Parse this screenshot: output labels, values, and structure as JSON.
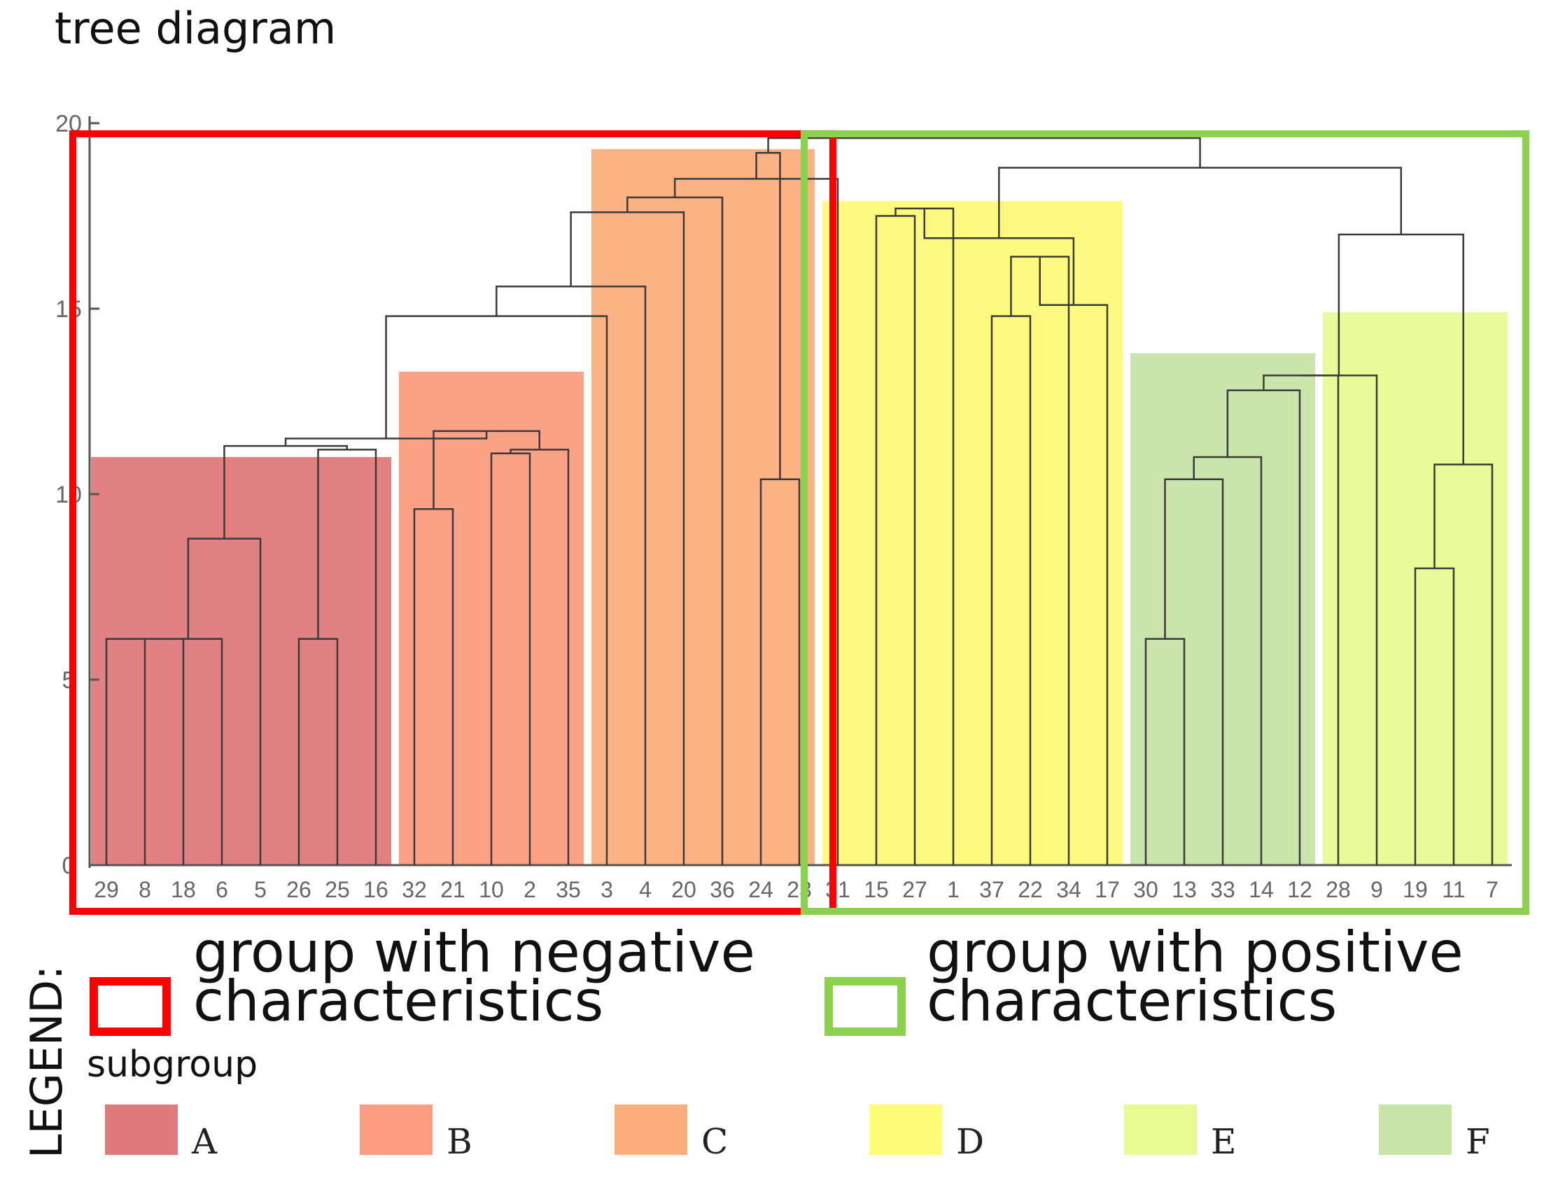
{
  "chart_data": {
    "type": "dendrogram",
    "title": "tree diagram",
    "ylim": [
      0,
      20
    ],
    "yticks": [
      0,
      5,
      10,
      15,
      20
    ],
    "leaves": [
      "29",
      "8",
      "18",
      "6",
      "5",
      "26",
      "25",
      "16",
      "32",
      "21",
      "10",
      "2",
      "35",
      "3",
      "4",
      "20",
      "36",
      "24",
      "23",
      "31",
      "15",
      "27",
      "1",
      "37",
      "22",
      "34",
      "17",
      "30",
      "13",
      "33",
      "14",
      "12",
      "28",
      "9",
      "19",
      "11",
      "7"
    ],
    "merges": [
      {
        "left": "L0",
        "right": "L1",
        "height": 6.1
      },
      {
        "left": "M0",
        "right": "L2",
        "height": 6.1
      },
      {
        "left": "M1",
        "right": "L3",
        "height": 6.1
      },
      {
        "left": "M2",
        "right": "L4",
        "height": 8.8
      },
      {
        "left": "L5",
        "right": "L6",
        "height": 6.1
      },
      {
        "left": "M4",
        "right": "L7",
        "height": 11.2
      },
      {
        "left": "M3",
        "right": "M5",
        "height": 11.3
      },
      {
        "left": "L8",
        "right": "L9",
        "height": 9.6
      },
      {
        "left": "L10",
        "right": "L11",
        "height": 11.1
      },
      {
        "left": "M8",
        "right": "L12",
        "height": 11.2
      },
      {
        "left": "M7",
        "right": "M9",
        "height": 11.7
      },
      {
        "left": "M6",
        "right": "M10",
        "height": 11.5
      },
      {
        "left": "M11",
        "right": "L13",
        "height": 14.8
      },
      {
        "left": "M12",
        "right": "L14",
        "height": 15.6
      },
      {
        "left": "M13",
        "right": "L15",
        "height": 17.6
      },
      {
        "left": "M14",
        "right": "L16",
        "height": 18.0
      },
      {
        "left": "L17",
        "right": "L18",
        "height": 10.4
      },
      {
        "left": "M15",
        "right": "L19",
        "height": 18.5
      },
      {
        "left": "L20",
        "right": "L21",
        "height": 17.5
      },
      {
        "left": "M17",
        "right": "M16",
        "height": 19.2
      },
      {
        "left": "M18",
        "right": "L22",
        "height": 17.7
      },
      {
        "left": "L23",
        "right": "L24",
        "height": 14.8
      },
      {
        "left": "M21",
        "right": "L25",
        "height": 16.4
      },
      {
        "left": "M22",
        "right": "L26",
        "height": 15.1
      },
      {
        "left": "M20",
        "right": "M23",
        "height": 16.9
      },
      {
        "left": "L27",
        "right": "L28",
        "height": 6.1
      },
      {
        "left": "M25",
        "right": "L29",
        "height": 10.4
      },
      {
        "left": "M26",
        "right": "L30",
        "height": 11.0
      },
      {
        "left": "M27",
        "right": "L31",
        "height": 12.8
      },
      {
        "left": "M28",
        "right": "L32",
        "height": 13.2
      },
      {
        "left": "M29",
        "right": "L33",
        "height": 13.2
      },
      {
        "left": "L34",
        "right": "L35",
        "height": 8.0
      },
      {
        "left": "M31",
        "right": "L36",
        "height": 10.8
      },
      {
        "left": "M30",
        "right": "M32",
        "height": 17.0
      },
      {
        "left": "M24",
        "right": "M33",
        "height": 18.8
      },
      {
        "left": "M19",
        "right": "M34",
        "height": 19.6
      }
    ],
    "subgroups": [
      {
        "name": "A",
        "from": "29",
        "to": "16",
        "top": 11.0,
        "color": "#e07a7c"
      },
      {
        "name": "B",
        "from": "32",
        "to": "35",
        "top": 13.3,
        "color": "#fc9c80"
      },
      {
        "name": "C",
        "from": "3",
        "to": "23",
        "top": 19.3,
        "color": "#fdae7d"
      },
      {
        "name": "D",
        "from": "31",
        "to": "17",
        "top": 17.9,
        "color": "#fffa78"
      },
      {
        "name": "F",
        "from": "30",
        "to": "12",
        "top": 13.8,
        "color": "#c7e3a6"
      },
      {
        "name": "E",
        "from": "28",
        "to": "7",
        "top": 14.9,
        "color": "#e8fb92"
      }
    ],
    "groups": [
      {
        "label": "group with negative characteristics",
        "from": "29",
        "to": "23",
        "color": "#ff0000"
      },
      {
        "label": "group with positive characteristics",
        "from": "31",
        "to": "7",
        "color": "#8cd14e"
      }
    ],
    "legend": {
      "label": "LEGEND:",
      "subgroup_title": "subgroup",
      "items": [
        {
          "name": "A",
          "color": "#e07a7c"
        },
        {
          "name": "B",
          "color": "#fc9c80"
        },
        {
          "name": "C",
          "color": "#fdae7d"
        },
        {
          "name": "D",
          "color": "#fffa78"
        },
        {
          "name": "E",
          "color": "#e8fb92"
        },
        {
          "name": "F",
          "color": "#c7e3a6"
        }
      ]
    }
  },
  "text": {
    "negative_line1": "group with negative",
    "negative_line2": "characteristics",
    "positive_line1": "group with positive",
    "positive_line2": "characteristics"
  }
}
